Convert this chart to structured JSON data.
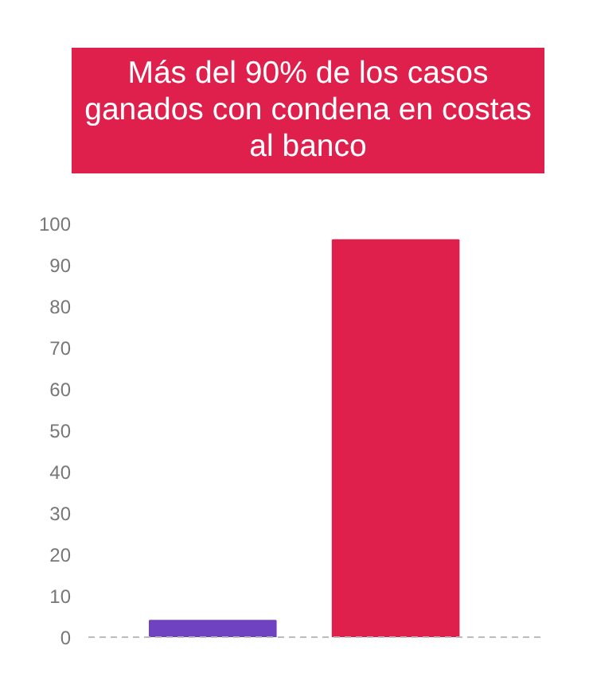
{
  "chart_data": {
    "type": "bar",
    "title": "Más del 90% de los casos ganados con condena en costas al banco",
    "categories": [
      null,
      null
    ],
    "values": [
      4,
      96
    ],
    "colors": [
      "#6f42c1",
      "#e0204c"
    ],
    "ylim": [
      0,
      100
    ],
    "yticks": [
      0,
      10,
      20,
      30,
      40,
      50,
      60,
      70,
      80,
      90,
      100
    ],
    "grid": false,
    "tick_labels": "y"
  }
}
